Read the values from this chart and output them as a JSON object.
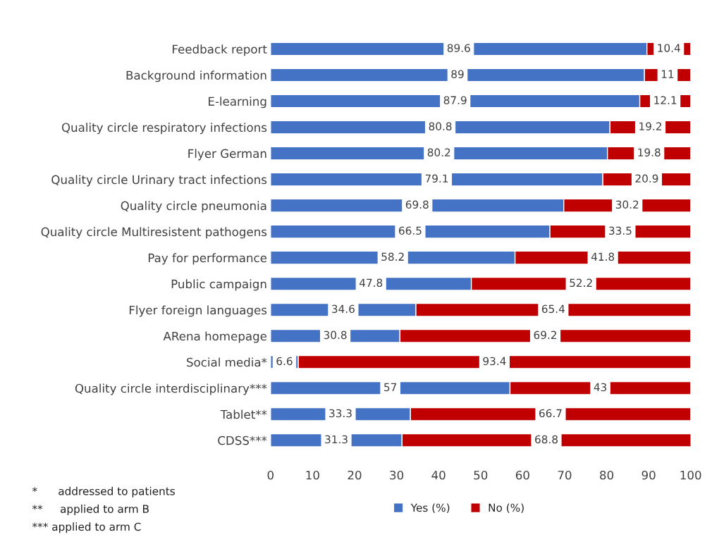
{
  "chart_data": {
    "type": "bar",
    "orientation": "horizontal",
    "stacked": true,
    "categories": [
      "Feedback report",
      "Background information",
      "E-learning",
      "Quality circle respiratory infections",
      "Flyer German",
      "Quality circle Urinary tract infections",
      "Quality circle pneumonia",
      "Quality circle Multiresistent pathogens",
      "Pay for performance",
      "Public campaign",
      "Flyer foreign languages",
      "ARena homepage",
      "Social media*",
      "Quality circle interdisciplinary***",
      "Tablet**",
      "CDSS***"
    ],
    "series": [
      {
        "name": "Yes (%)",
        "color": "#4472c4",
        "values": [
          89.6,
          89,
          87.9,
          80.8,
          80.2,
          79.1,
          69.8,
          66.5,
          58.2,
          47.8,
          34.6,
          30.8,
          6.6,
          57,
          33.3,
          31.3
        ]
      },
      {
        "name": "No (%)",
        "color": "#c00000",
        "values": [
          10.4,
          11,
          12.1,
          19.2,
          19.8,
          20.9,
          30.2,
          33.5,
          41.8,
          52.2,
          65.4,
          69.2,
          93.4,
          43,
          66.7,
          68.8
        ]
      }
    ],
    "xlim": [
      0,
      100
    ],
    "xticks": [
      0,
      10,
      20,
      30,
      40,
      50,
      60,
      70,
      80,
      90,
      100
    ],
    "data_labels": true,
    "grid": false,
    "legend": "bottom",
    "annotations": [
      "*      addressed to patients",
      "**     applied to arm B",
      "*** applied to arm C"
    ]
  }
}
